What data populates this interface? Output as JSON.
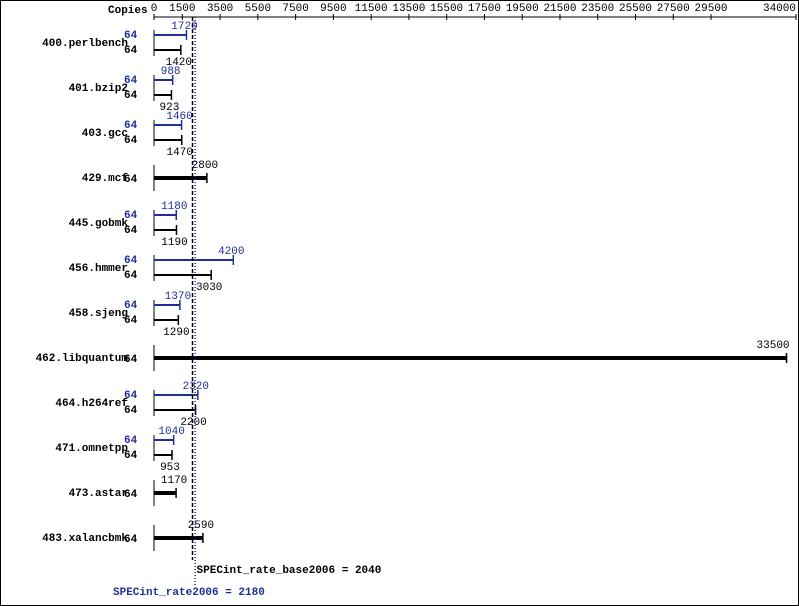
{
  "chart_data": {
    "type": "bar",
    "orientation": "horizontal",
    "copies_header": "Copies",
    "categories": [
      "400.perlbench",
      "401.bzip2",
      "403.gcc",
      "429.mcf",
      "445.gobmk",
      "456.hmmer",
      "458.sjeng",
      "462.libquantum",
      "464.h264ref",
      "471.omnetpp",
      "473.astar",
      "483.xalancbmk"
    ],
    "series": [
      {
        "color": "#202e99",
        "values": [
          1720,
          988,
          1460,
          null,
          1180,
          4200,
          1370,
          null,
          2320,
          1040,
          null,
          null
        ],
        "copies": [
          64,
          64,
          64,
          null,
          64,
          64,
          64,
          null,
          64,
          64,
          null,
          null
        ]
      },
      {
        "color": "#000000",
        "values": [
          1420,
          923,
          1470,
          2800,
          1190,
          3030,
          1290,
          33500,
          2200,
          953,
          1170,
          2590
        ],
        "copies": [
          64,
          64,
          64,
          64,
          64,
          64,
          64,
          64,
          64,
          64,
          64,
          64
        ]
      }
    ],
    "xlim": [
      0,
      34000
    ],
    "xticks": [
      0,
      1500,
      3500,
      5500,
      7500,
      9500,
      11500,
      13500,
      15500,
      17500,
      19500,
      21500,
      23500,
      25500,
      27500,
      29500,
      34000
    ],
    "reference_lines": [
      {
        "value": 2040,
        "label": "SPECint_rate_base2006 = 2040",
        "color": "#000000"
      },
      {
        "value": 2180,
        "label": "SPECint_rate2006 = 2180",
        "color": "#202e99"
      }
    ]
  }
}
